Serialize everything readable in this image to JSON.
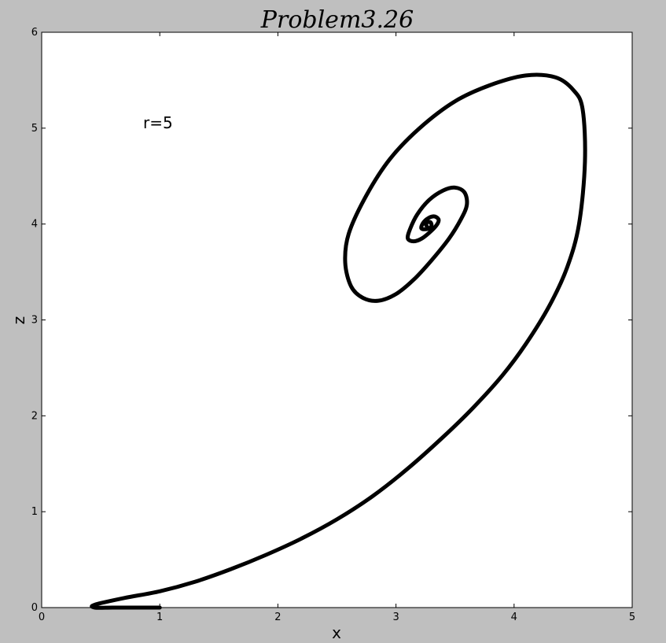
{
  "chart_data": {
    "type": "line",
    "title": "Problem3.26",
    "xlabel": "x",
    "ylabel": "z",
    "xlim": [
      0,
      5
    ],
    "ylim": [
      0,
      6
    ],
    "xticks": [
      "0",
      "1",
      "2",
      "3",
      "4",
      "5"
    ],
    "yticks": [
      "0",
      "1",
      "2",
      "3",
      "4",
      "5",
      "6"
    ],
    "grid": false,
    "annotation": {
      "text": "r=5",
      "x": 1.0,
      "y": 5.0
    },
    "series": [
      {
        "color": "#000000",
        "x": [
          1.0,
          0.8,
          0.6,
          0.45,
          0.45,
          0.7,
          1.0,
          1.3,
          1.6,
          1.9,
          2.2,
          2.5,
          2.8,
          3.1,
          3.4,
          3.65,
          3.9,
          4.1,
          4.3,
          4.45,
          4.55,
          4.6,
          4.58,
          4.5,
          4.35,
          4.1,
          3.8,
          3.5,
          3.2,
          2.95,
          2.75,
          2.6,
          2.57,
          2.62,
          2.72,
          2.85,
          3.0,
          3.15,
          3.3,
          3.45,
          3.55,
          3.6,
          3.58,
          3.5,
          3.4,
          3.28,
          3.18,
          3.12,
          3.1,
          3.15,
          3.22,
          3.3,
          3.35,
          3.36,
          3.32,
          3.26,
          3.22,
          3.22,
          3.27,
          3.3,
          3.29,
          3.25,
          3.26
        ],
        "y": [
          0.0,
          0.0,
          0.0,
          0.0,
          0.03,
          0.1,
          0.17,
          0.27,
          0.4,
          0.55,
          0.72,
          0.92,
          1.16,
          1.45,
          1.78,
          2.08,
          2.42,
          2.75,
          3.15,
          3.55,
          4.0,
          4.65,
          5.2,
          5.4,
          5.53,
          5.55,
          5.45,
          5.28,
          5.0,
          4.68,
          4.3,
          3.9,
          3.6,
          3.35,
          3.23,
          3.2,
          3.27,
          3.42,
          3.62,
          3.85,
          4.05,
          4.2,
          4.33,
          4.38,
          4.35,
          4.25,
          4.1,
          3.95,
          3.85,
          3.82,
          3.85,
          3.93,
          4.0,
          4.05,
          4.08,
          4.05,
          3.99,
          3.95,
          3.95,
          3.98,
          4.02,
          4.01,
          3.98
        ]
      }
    ]
  }
}
